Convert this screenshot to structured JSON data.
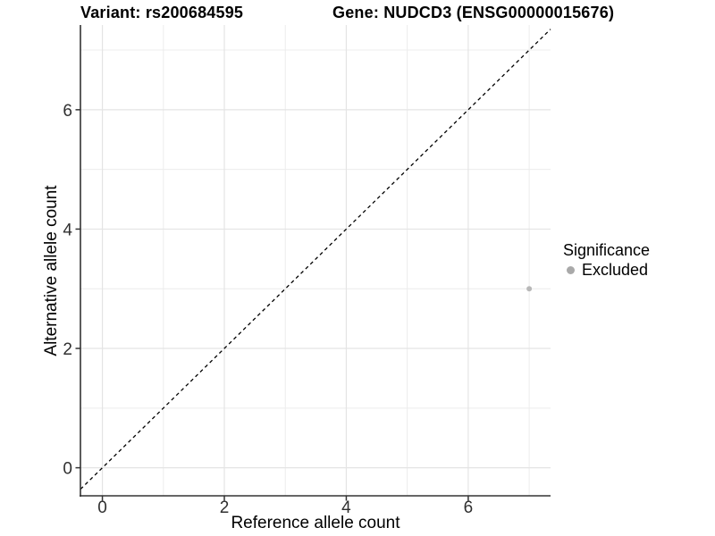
{
  "chart_data": {
    "type": "scatter",
    "title_left": "Variant: rs200684595",
    "title_right": "Gene: NUDCD3 (ENSG00000015676)",
    "xlabel": "Reference allele count",
    "ylabel": "Alternative allele count",
    "xlim": [
      -0.36,
      7.35
    ],
    "ylim": [
      -0.47,
      7.42
    ],
    "x_major_ticks": [
      0,
      2,
      4,
      6
    ],
    "y_major_ticks": [
      0,
      2,
      4,
      6
    ],
    "x_minor_gridlines": [
      1,
      3,
      5,
      7
    ],
    "y_minor_gridlines": [
      1,
      3,
      5,
      7
    ],
    "grid": true,
    "reference_line": {
      "type": "identity",
      "slope": 1,
      "intercept": 0,
      "style": "dashed",
      "color": "#000000"
    },
    "series": [
      {
        "name": "Excluded",
        "color": "#b8b8b8",
        "points": [
          {
            "x": 7,
            "y": 3
          }
        ]
      }
    ],
    "legend": {
      "title": "Significance",
      "position": "right",
      "entries": [
        {
          "label": "Excluded",
          "color": "#a9a9a9"
        }
      ]
    },
    "colors": {
      "grid_major": "#e4e4e4",
      "grid_minor": "#ececec",
      "axis_line": "#333333",
      "tick_text": "#303030",
      "background": "#ffffff"
    }
  }
}
